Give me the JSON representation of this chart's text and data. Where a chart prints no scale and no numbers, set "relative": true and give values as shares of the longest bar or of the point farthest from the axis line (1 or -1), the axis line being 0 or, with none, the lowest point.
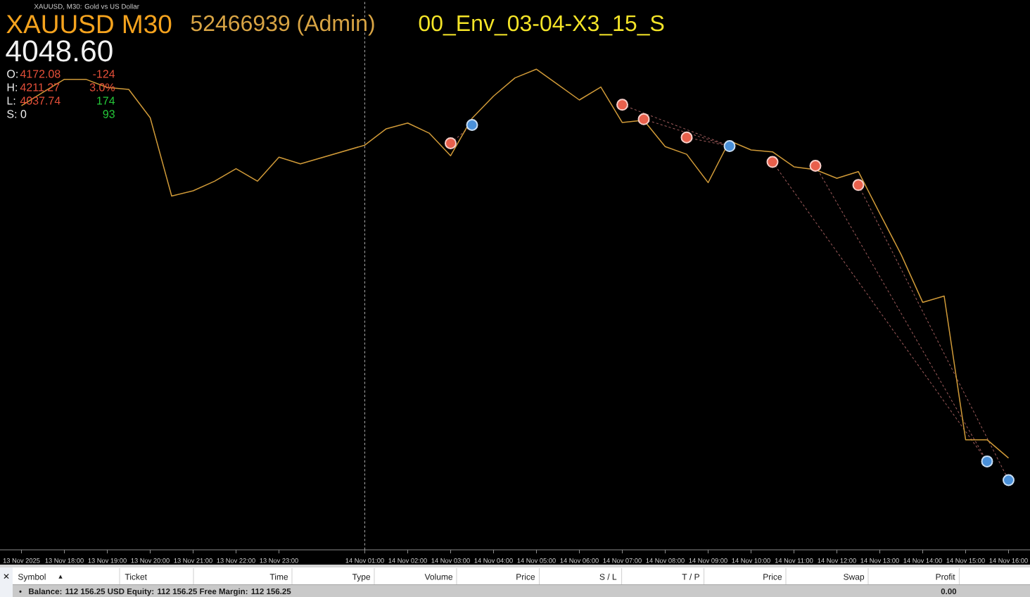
{
  "chart_data": {
    "type": "line",
    "title": "XAUUSD M30",
    "relative": true,
    "annotations": [
      "XAUUSD, M30: Gold vs US Dollar",
      "52466939 (Admin)",
      "00_Env_03-04-X3_15_S",
      "4048.60",
      "O:",
      "4172.08",
      "-124",
      "H:",
      "4211.27",
      "3.0%",
      "L:",
      "4037.74",
      "174",
      "S: 0",
      "93",
      "✕",
      "Symbol",
      "▲",
      "Ticket",
      "Time",
      "Type",
      "Volume",
      "Price",
      "S / L",
      "T / P",
      "Price",
      "Swap",
      "Profit",
      "•",
      "Balance: 112 156.25 USD Equity: 112 156.25 Free Margin: 112 156.25",
      "0.00"
    ],
    "xlim": [
      "2025-11-13T16:30",
      "2025-11-14T16:30"
    ],
    "xticks": [
      {
        "value": "2025-11-13T17:00",
        "label": "13 Nov 2025"
      },
      {
        "value": "2025-11-13T18:00",
        "label": "13 Nov 18:00"
      },
      {
        "value": "2025-11-13T19:00",
        "label": "13 Nov 19:00"
      },
      {
        "value": "2025-11-13T20:00",
        "label": "13 Nov 20:00"
      },
      {
        "value": "2025-11-13T21:00",
        "label": "13 Nov 21:00"
      },
      {
        "value": "2025-11-13T22:00",
        "label": "13 Nov 22:00"
      },
      {
        "value": "2025-11-13T23:00",
        "label": "13 Nov 23:00"
      },
      {
        "value": "2025-11-14T01:00",
        "label": "14 Nov 01:00"
      },
      {
        "value": "2025-11-14T02:00",
        "label": "14 Nov 02:00"
      },
      {
        "value": "2025-11-14T03:00",
        "label": "14 Nov 03:00"
      },
      {
        "value": "2025-11-14T04:00",
        "label": "14 Nov 04:00"
      },
      {
        "value": "2025-11-14T05:00",
        "label": "14 Nov 05:00"
      },
      {
        "value": "2025-11-14T06:00",
        "label": "14 Nov 06:00"
      },
      {
        "value": "2025-11-14T07:00",
        "label": "14 Nov 07:00"
      },
      {
        "value": "2025-11-14T08:00",
        "label": "14 Nov 08:00"
      },
      {
        "value": "2025-11-14T09:00",
        "label": "14 Nov 09:00"
      },
      {
        "value": "2025-11-14T10:00",
        "label": "14 Nov 10:00"
      },
      {
        "value": "2025-11-14T11:00",
        "label": "14 Nov 11:00"
      },
      {
        "value": "2025-11-14T12:00",
        "label": "14 Nov 12:00"
      },
      {
        "value": "2025-11-14T13:00",
        "label": "14 Nov 13:00"
      },
      {
        "value": "2025-11-14T14:00",
        "label": "14 Nov 14:00"
      },
      {
        "value": "2025-11-14T15:00",
        "label": "14 Nov 15:00"
      },
      {
        "value": "2025-11-14T16:00",
        "label": "14 Nov 16:00"
      }
    ],
    "ref_lines": [
      {
        "axis": "x",
        "value": "2025-11-14T01:00",
        "color": "#a8a8a8",
        "line_style": "dashed"
      }
    ],
    "series": [
      {
        "color": "#d09a38",
        "x": [
          "2025-11-13T17:00",
          "2025-11-13T17:30",
          "2025-11-13T18:00",
          "2025-11-13T18:30",
          "2025-11-13T19:00",
          "2025-11-13T19:30",
          "2025-11-13T20:00",
          "2025-11-13T20:30",
          "2025-11-13T21:00",
          "2025-11-13T21:30",
          "2025-11-13T22:00",
          "2025-11-13T22:30",
          "2025-11-13T23:00",
          "2025-11-13T23:30",
          "2025-11-14T01:00",
          "2025-11-14T01:30",
          "2025-11-14T02:00",
          "2025-11-14T02:30",
          "2025-11-14T03:00",
          "2025-11-14T03:30",
          "2025-11-14T04:00",
          "2025-11-14T04:30",
          "2025-11-14T05:00",
          "2025-11-14T05:30",
          "2025-11-14T06:00",
          "2025-11-14T06:30",
          "2025-11-14T07:00",
          "2025-11-14T07:30",
          "2025-11-14T08:00",
          "2025-11-14T08:30",
          "2025-11-14T09:00",
          "2025-11-14T09:30",
          "2025-11-14T10:00",
          "2025-11-14T10:30",
          "2025-11-14T11:00",
          "2025-11-14T11:30",
          "2025-11-14T12:00",
          "2025-11-14T12:30",
          "2025-11-14T13:00",
          "2025-11-14T13:30",
          "2025-11-14T14:00",
          "2025-11-14T14:30",
          "2025-11-14T15:00",
          "2025-11-14T15:30",
          "2025-11-14T16:00"
        ],
        "values": [
          0.924,
          0.952,
          0.979,
          0.979,
          0.962,
          0.958,
          0.899,
          0.736,
          0.747,
          0.767,
          0.793,
          0.767,
          0.817,
          0.803,
          0.842,
          0.876,
          0.888,
          0.867,
          0.82,
          0.898,
          0.944,
          0.982,
          1.0,
          0.968,
          0.936,
          0.963,
          0.889,
          0.894,
          0.839,
          0.823,
          0.764,
          0.851,
          0.832,
          0.828,
          0.797,
          0.791,
          0.773,
          0.787,
          0.7,
          0.614,
          0.515,
          0.528,
          0.229,
          0.229,
          0.191
        ]
      },
      {
        "type": "scatter",
        "color": "#e8604c",
        "marker": "circle",
        "x": [
          "2025-11-14T03:00",
          "2025-11-14T07:00",
          "2025-11-14T07:30",
          "2025-11-14T08:30",
          "2025-11-14T10:30",
          "2025-11-14T11:30",
          "2025-11-14T12:30"
        ],
        "values": [
          0.846,
          0.926,
          0.896,
          0.858,
          0.807,
          0.799,
          0.759
        ]
      },
      {
        "type": "scatter",
        "color": "#4a90d9",
        "marker": "circle",
        "x": [
          "2025-11-14T03:30",
          "2025-11-14T09:30",
          "2025-11-14T15:30",
          "2025-11-14T16:00"
        ],
        "values": [
          0.884,
          0.84,
          0.184,
          0.145
        ]
      },
      {
        "color": "#9c5a5a",
        "line_style": "dashed",
        "x": [
          "2025-11-14T03:00",
          "2025-11-14T03:30"
        ],
        "values": [
          0.846,
          0.884
        ]
      },
      {
        "color": "#9c5a5a",
        "line_style": "dashed",
        "x": [
          "2025-11-14T07:00",
          "2025-11-14T09:30"
        ],
        "values": [
          0.926,
          0.84
        ]
      },
      {
        "color": "#9c5a5a",
        "line_style": "dashed",
        "x": [
          "2025-11-14T07:30",
          "2025-11-14T09:30"
        ],
        "values": [
          0.896,
          0.84
        ]
      },
      {
        "color": "#9c5a5a",
        "line_style": "dashed",
        "x": [
          "2025-11-14T08:30",
          "2025-11-14T09:30"
        ],
        "values": [
          0.858,
          0.84
        ]
      },
      {
        "color": "#9c5a5a",
        "line_style": "dashed",
        "x": [
          "2025-11-14T10:30",
          "2025-11-14T15:30"
        ],
        "values": [
          0.807,
          0.184
        ]
      },
      {
        "color": "#9c5a5a",
        "line_style": "dashed",
        "x": [
          "2025-11-14T11:30",
          "2025-11-14T15:30"
        ],
        "values": [
          0.799,
          0.184
        ]
      },
      {
        "color": "#9c5a5a",
        "line_style": "dashed",
        "x": [
          "2025-11-14T12:30",
          "2025-11-14T16:00"
        ],
        "values": [
          0.759,
          0.145
        ]
      }
    ]
  }
}
